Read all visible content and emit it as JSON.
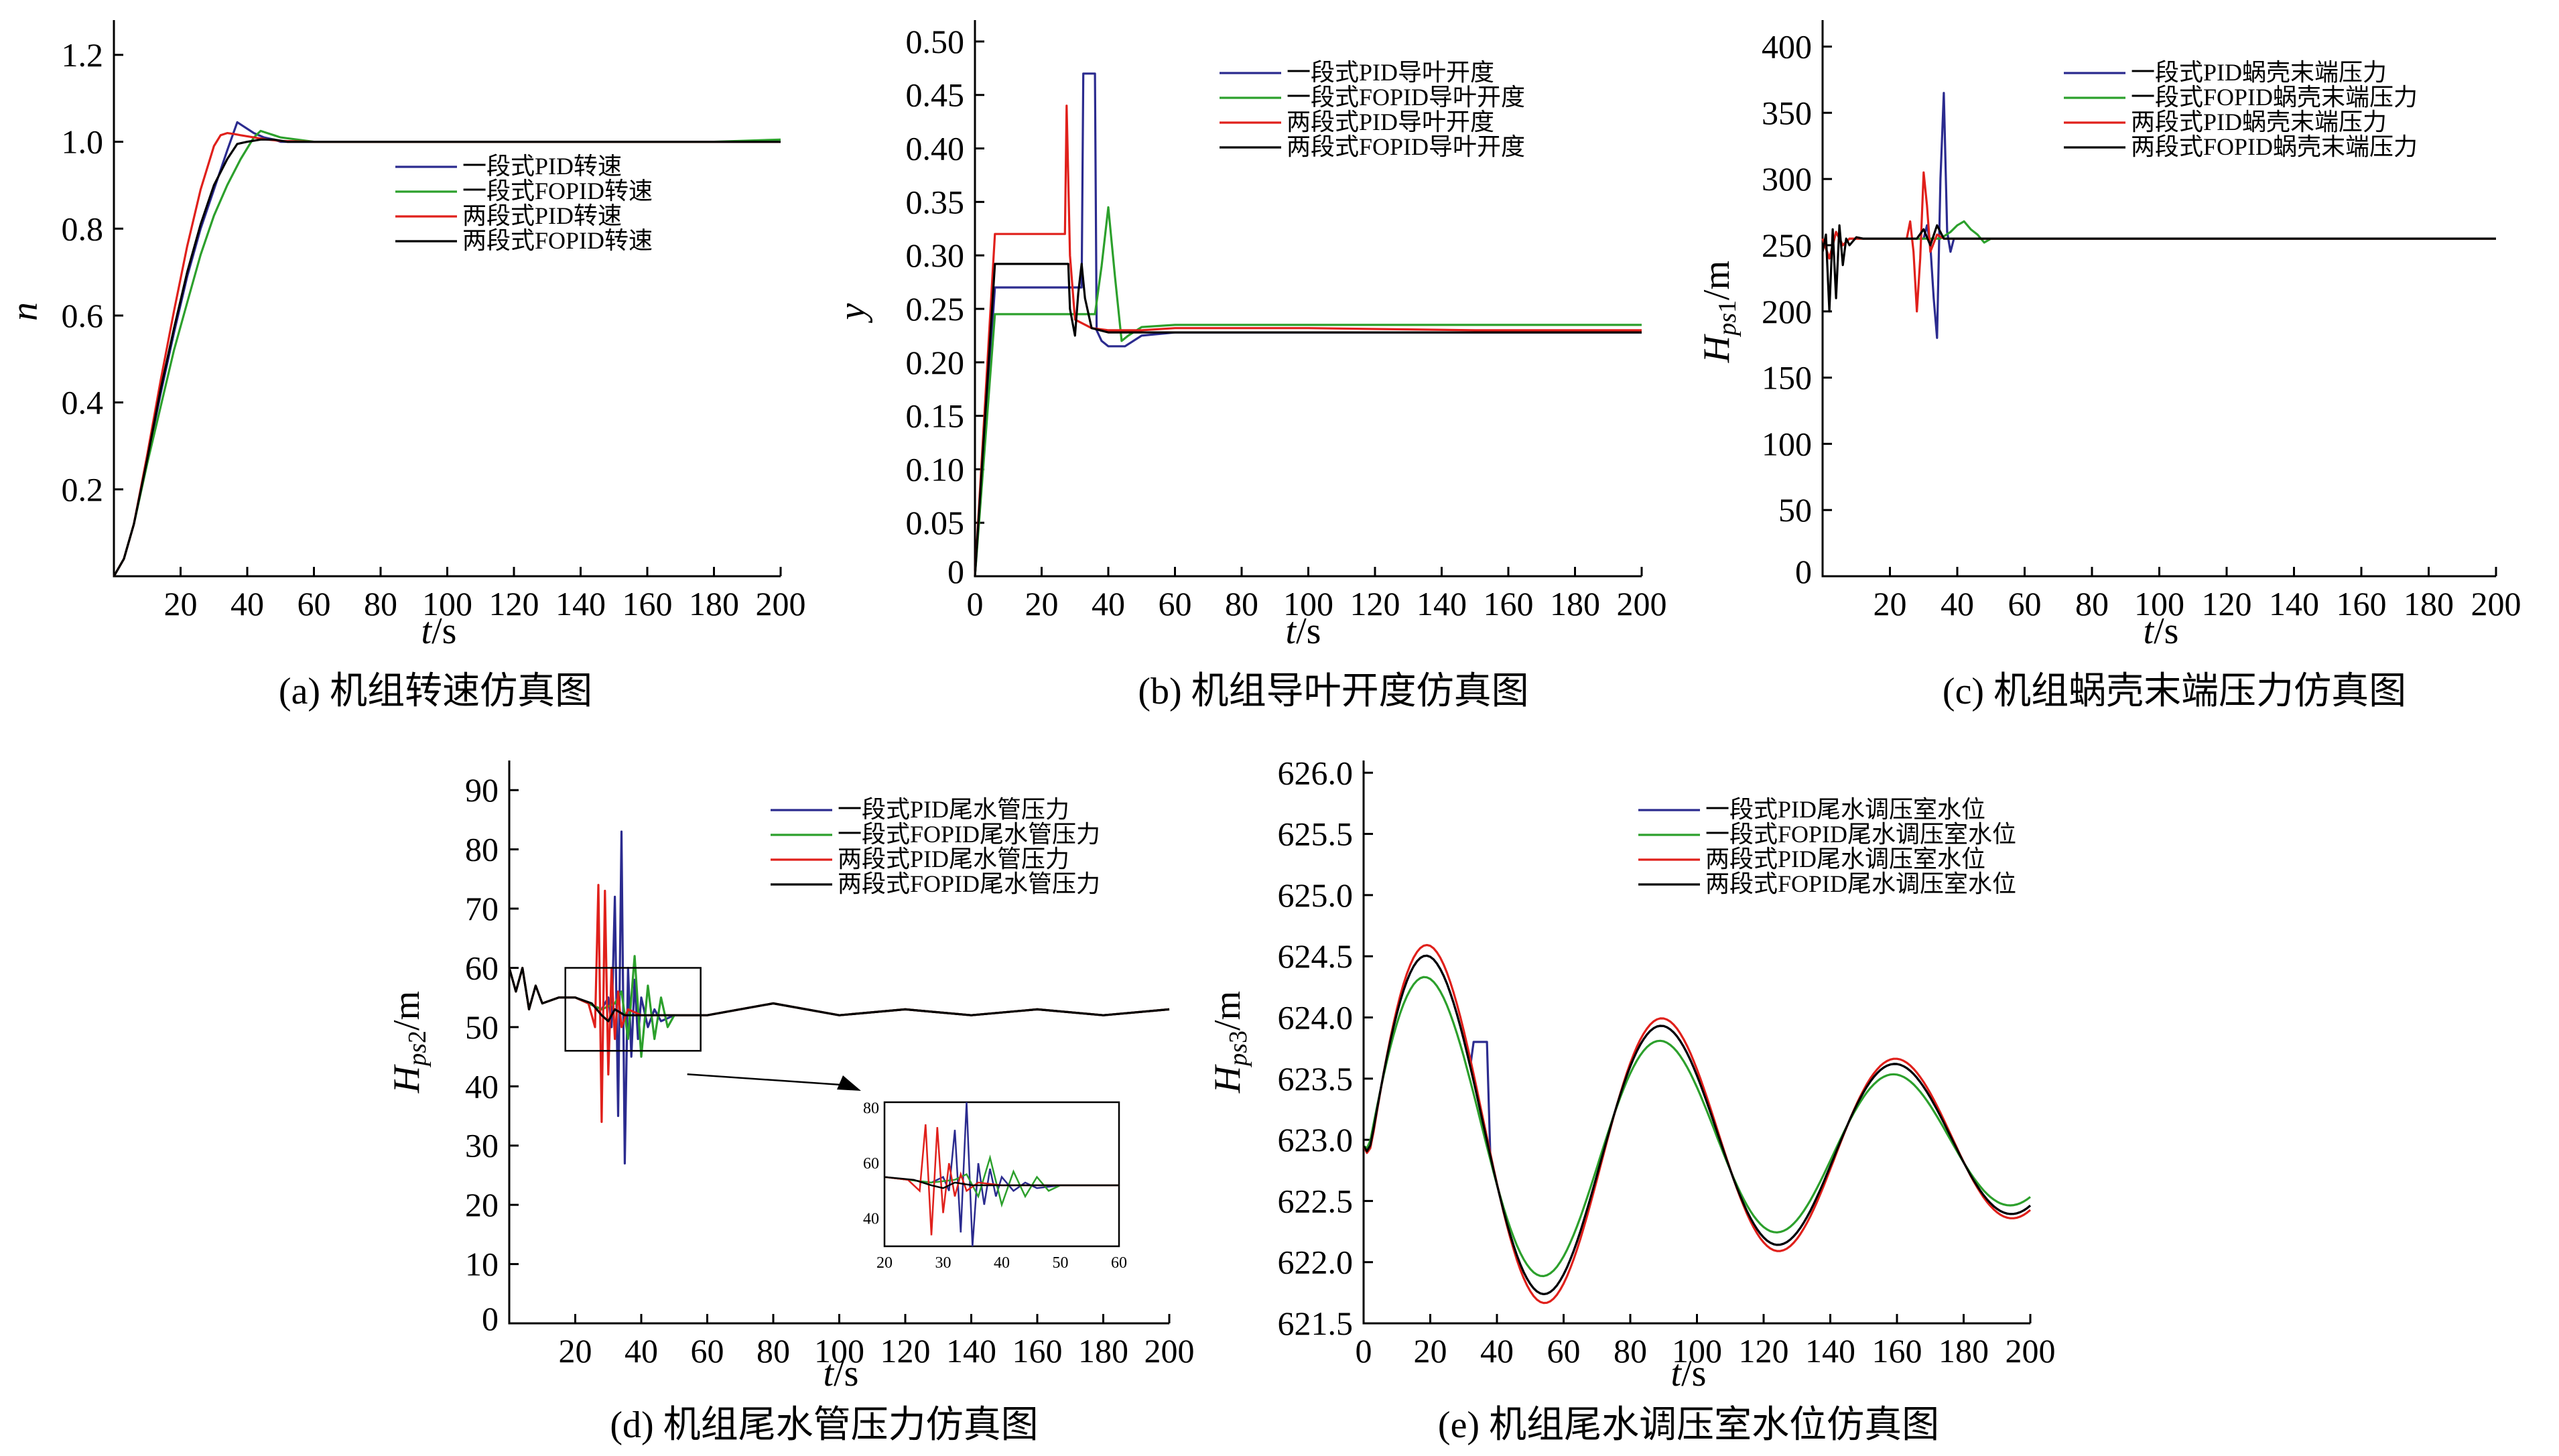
{
  "colors": {
    "pid1": "#2b2b8f",
    "fopid1": "#2ca02c",
    "pid2": "#e0201b",
    "fopid2": "#000000"
  },
  "chart_data": [
    {
      "id": "a",
      "type": "line",
      "caption": "(a) 机组转速仿真图",
      "xlabel": "t/s",
      "ylabel": "n",
      "xlim": [
        0,
        200
      ],
      "ylim": [
        0,
        1.28
      ],
      "xticks": [
        20,
        40,
        60,
        80,
        100,
        120,
        140,
        160,
        180,
        200
      ],
      "yticks": [
        0.2,
        0.4,
        0.6,
        0.8,
        1.0,
        1.2
      ],
      "ytick_labels": [
        "0.2",
        "0.4",
        "0.6",
        "0.8",
        "1.0",
        "1.2"
      ],
      "legend": [
        "一段式PID转速",
        "一段式FOPID转速",
        "两段式PID转速",
        "两段式FOPID转速"
      ],
      "series": [
        {
          "name": "一段式PID转速",
          "color": "pid1",
          "x": [
            0,
            3,
            6,
            10,
            14,
            18,
            22,
            26,
            30,
            34,
            37,
            39,
            42,
            45,
            48,
            50,
            60,
            80,
            100,
            120,
            140,
            160,
            180,
            200
          ],
          "y": [
            0,
            0.04,
            0.12,
            0.27,
            0.42,
            0.56,
            0.69,
            0.8,
            0.89,
            0.98,
            1.045,
            1.035,
            1.02,
            1.01,
            1.005,
            1.0,
            1.0,
            1.0,
            1.0,
            1.0,
            1.0,
            1.0,
            1.0,
            1.0
          ]
        },
        {
          "name": "一段式FOPID转速",
          "color": "fopid1",
          "x": [
            0,
            3,
            6,
            10,
            14,
            18,
            22,
            26,
            30,
            34,
            38,
            42,
            44,
            46,
            48,
            50,
            55,
            60,
            80,
            100,
            120,
            140,
            160,
            180,
            200
          ],
          "y": [
            0,
            0.04,
            0.12,
            0.26,
            0.39,
            0.52,
            0.63,
            0.74,
            0.83,
            0.9,
            0.96,
            1.01,
            1.025,
            1.02,
            1.015,
            1.01,
            1.005,
            1.0,
            1.0,
            1.0,
            1.0,
            1.0,
            1.0,
            1.0,
            1.005
          ]
        },
        {
          "name": "两段式PID转速",
          "color": "pid2",
          "x": [
            0,
            3,
            6,
            10,
            14,
            18,
            22,
            26,
            30,
            32,
            34,
            36,
            38,
            42,
            46,
            50,
            60,
            80,
            100,
            120,
            140,
            160,
            180,
            200
          ],
          "y": [
            0,
            0.04,
            0.12,
            0.28,
            0.45,
            0.61,
            0.76,
            0.89,
            0.99,
            1.015,
            1.02,
            1.018,
            1.015,
            1.01,
            1.005,
            1.002,
            1.0,
            1.0,
            1.0,
            1.0,
            1.0,
            1.0,
            1.0,
            1.0
          ]
        },
        {
          "name": "两段式FOPID转速",
          "color": "fopid2",
          "x": [
            0,
            3,
            6,
            10,
            14,
            18,
            22,
            26,
            30,
            34,
            37,
            40,
            44,
            48,
            52,
            60,
            80,
            100,
            120,
            140,
            160,
            180,
            200
          ],
          "y": [
            0,
            0.04,
            0.12,
            0.27,
            0.43,
            0.57,
            0.7,
            0.81,
            0.9,
            0.96,
            0.995,
            1.0,
            1.005,
            1.005,
            1.0,
            1.0,
            1.0,
            1.0,
            1.0,
            1.0,
            1.0,
            1.0,
            1.0
          ]
        }
      ]
    },
    {
      "id": "b",
      "type": "line",
      "caption": "(b) 机组导叶开度仿真图",
      "xlabel": "t/s",
      "ylabel": "y",
      "xlim": [
        0,
        200
      ],
      "ylim": [
        0,
        0.52
      ],
      "xticks": [
        0,
        20,
        40,
        60,
        80,
        100,
        120,
        140,
        160,
        180,
        200
      ],
      "yticks": [
        0.05,
        0.1,
        0.15,
        0.2,
        0.25,
        0.3,
        0.35,
        0.4,
        0.45,
        0.5
      ],
      "ytick_labels": [
        "0.05",
        "0.10",
        "0.15",
        "0.20",
        "0.25",
        "0.30",
        "0.35",
        "0.40",
        "0.45",
        "0.50"
      ],
      "legend": [
        "一段式PID导叶开度",
        "一段式FOPID导叶开度",
        "两段式PID导叶开度",
        "两段式FOPID导叶开度"
      ],
      "series": [
        {
          "name": "一段式PID导叶开度",
          "color": "pid1",
          "x": [
            0,
            6,
            32,
            32.5,
            36,
            36.5,
            38,
            40,
            45,
            50,
            60,
            100,
            150,
            200
          ],
          "y": [
            0.0,
            0.27,
            0.27,
            0.47,
            0.47,
            0.23,
            0.22,
            0.215,
            0.215,
            0.225,
            0.228,
            0.228,
            0.228,
            0.228
          ]
        },
        {
          "name": "一段式FOPID导叶开度",
          "color": "fopid1",
          "x": [
            0,
            6,
            36,
            38,
            40,
            42,
            44,
            46,
            50,
            60,
            100,
            150,
            200
          ],
          "y": [
            0.0,
            0.245,
            0.245,
            0.29,
            0.345,
            0.28,
            0.22,
            0.225,
            0.233,
            0.235,
            0.235,
            0.235,
            0.235
          ]
        },
        {
          "name": "两段式PID导叶开度",
          "color": "pid2",
          "x": [
            0,
            6,
            26,
            27,
            27.5,
            28.5,
            30,
            35,
            40,
            50,
            60,
            100,
            150,
            200
          ],
          "y": [
            0.0,
            0.32,
            0.32,
            0.32,
            0.44,
            0.3,
            0.24,
            0.232,
            0.23,
            0.23,
            0.232,
            0.232,
            0.23,
            0.23
          ]
        },
        {
          "name": "两段式FOPID导叶开度",
          "color": "fopid2",
          "x": [
            0,
            6,
            28,
            28.5,
            30,
            31,
            32,
            33,
            35,
            40,
            50,
            100,
            150,
            200
          ],
          "y": [
            0.0,
            0.292,
            0.292,
            0.25,
            0.225,
            0.265,
            0.292,
            0.26,
            0.232,
            0.228,
            0.228,
            0.228,
            0.228,
            0.228
          ]
        }
      ]
    },
    {
      "id": "c",
      "type": "line",
      "caption": "(c) 机组蜗壳末端压力仿真图",
      "xlabel": "t/s",
      "ylabel": "Hps1/m",
      "xlim": [
        0,
        200
      ],
      "ylim": [
        0,
        420
      ],
      "xticks": [
        20,
        40,
        60,
        80,
        100,
        120,
        140,
        160,
        180,
        200
      ],
      "yticks": [
        50,
        100,
        150,
        200,
        250,
        300,
        350,
        400
      ],
      "ytick_labels": [
        "50",
        "100",
        "150",
        "200",
        "250",
        "300",
        "350",
        "400"
      ],
      "legend": [
        "一段式PID蜗壳末端压力",
        "一段式FOPID蜗壳末端压力",
        "两段式PID蜗壳末端压力",
        "两段式FOPID蜗壳末端压力"
      ],
      "series": [
        {
          "name": "一段式PID蜗壳末端压力",
          "color": "pid1",
          "x": [
            0,
            2,
            4,
            6,
            8,
            10,
            20,
            30,
            31,
            32,
            33,
            34,
            35,
            36,
            37,
            38,
            39,
            40,
            45,
            50,
            100,
            150,
            200
          ],
          "y": [
            255,
            240,
            260,
            250,
            255,
            255,
            255,
            255,
            265,
            250,
            210,
            180,
            300,
            365,
            260,
            245,
            255,
            255,
            255,
            255,
            255,
            255,
            255
          ]
        },
        {
          "name": "一段式FOPID蜗壳末端压力",
          "color": "fopid1",
          "x": [
            0,
            2,
            4,
            6,
            8,
            10,
            20,
            30,
            35,
            38,
            40,
            42,
            44,
            46,
            48,
            50,
            100,
            150,
            200
          ],
          "y": [
            255,
            240,
            260,
            250,
            255,
            255,
            255,
            255,
            255,
            260,
            265,
            268,
            262,
            258,
            252,
            255,
            255,
            255,
            255
          ]
        },
        {
          "name": "两段式PID蜗壳末端压力",
          "color": "pid2",
          "x": [
            0,
            2,
            4,
            6,
            8,
            10,
            20,
            25,
            26,
            27,
            28,
            29,
            30,
            31,
            32,
            34,
            36,
            40,
            50,
            100,
            150,
            200
          ],
          "y": [
            255,
            240,
            260,
            250,
            255,
            255,
            255,
            255,
            268,
            245,
            200,
            240,
            305,
            280,
            245,
            258,
            255,
            255,
            255,
            255,
            255,
            255
          ]
        },
        {
          "name": "两段式FOPID蜗壳末端压力",
          "color": "fopid2",
          "x": [
            0,
            1,
            2,
            3,
            4,
            5,
            6,
            7,
            8,
            10,
            12,
            20,
            28,
            30,
            32,
            34,
            36,
            40,
            50,
            100,
            150,
            200
          ],
          "y": [
            245,
            258,
            200,
            262,
            210,
            265,
            235,
            255,
            250,
            256,
            255,
            255,
            255,
            262,
            250,
            265,
            255,
            255,
            255,
            255,
            255,
            255
          ]
        }
      ]
    },
    {
      "id": "d",
      "type": "line",
      "caption": "(d) 机组尾水管压力仿真图",
      "xlabel": "t/s",
      "ylabel": "Hps2/m",
      "xlim": [
        0,
        200
      ],
      "ylim": [
        0,
        95
      ],
      "xticks": [
        20,
        40,
        60,
        80,
        100,
        120,
        140,
        160,
        180,
        200
      ],
      "yticks": [
        10,
        20,
        30,
        40,
        50,
        60,
        70,
        80,
        90
      ],
      "ytick_labels": [
        "10",
        "20",
        "30",
        "40",
        "50",
        "60",
        "70",
        "80",
        "90"
      ],
      "legend": [
        "一段式PID尾水管压力",
        "一段式FOPID尾水管压力",
        "两段式PID尾水管压力",
        "两段式FOPID尾水管压力"
      ],
      "inset": {
        "xlim": [
          20,
          60
        ],
        "ylim": [
          30,
          82
        ],
        "xticks": [
          20,
          30,
          40,
          50,
          60
        ],
        "yticks": [
          40,
          60,
          80
        ]
      },
      "series": [
        {
          "name": "一段式PID尾水管压力",
          "color": "pid1",
          "x": [
            0,
            2,
            4,
            6,
            8,
            10,
            15,
            20,
            28,
            30,
            31,
            32,
            33,
            34,
            35,
            36,
            37,
            38,
            39,
            40,
            42,
            44,
            46,
            50,
            60,
            80,
            100,
            120,
            140,
            160,
            180,
            200
          ],
          "y": [
            60,
            56,
            60,
            53,
            57,
            54,
            55,
            55,
            53,
            55,
            50,
            72,
            35,
            83,
            27,
            60,
            45,
            58,
            48,
            55,
            50,
            53,
            51,
            52,
            52,
            54,
            52,
            53,
            52,
            53,
            52,
            53
          ]
        },
        {
          "name": "一段式FOPID尾水管压力",
          "color": "fopid1",
          "x": [
            0,
            2,
            4,
            6,
            8,
            10,
            15,
            20,
            28,
            32,
            34,
            36,
            38,
            40,
            42,
            44,
            46,
            48,
            50,
            60,
            80,
            100,
            120,
            140,
            160,
            180,
            200
          ],
          "y": [
            60,
            56,
            60,
            53,
            57,
            54,
            55,
            55,
            53,
            54,
            56,
            48,
            62,
            45,
            57,
            48,
            55,
            50,
            52,
            52,
            54,
            52,
            53,
            52,
            53,
            52,
            53
          ]
        },
        {
          "name": "两段式PID尾水管压力",
          "color": "pid2",
          "x": [
            0,
            2,
            4,
            6,
            8,
            10,
            15,
            20,
            24,
            26,
            27,
            28,
            29,
            30,
            31,
            32,
            33,
            34,
            36,
            40,
            45,
            50,
            60,
            80,
            100,
            120,
            140,
            160,
            180,
            200
          ],
          "y": [
            60,
            56,
            60,
            53,
            57,
            54,
            55,
            55,
            54,
            50,
            74,
            34,
            73,
            42,
            60,
            48,
            56,
            50,
            53,
            52,
            52,
            52,
            52,
            54,
            52,
            53,
            52,
            53,
            52,
            53
          ]
        },
        {
          "name": "两段式FOPID尾水管压力",
          "color": "fopid2",
          "x": [
            0,
            2,
            4,
            6,
            8,
            10,
            15,
            20,
            25,
            28,
            30,
            32,
            35,
            40,
            50,
            60,
            80,
            100,
            120,
            140,
            160,
            180,
            200
          ],
          "y": [
            60,
            56,
            60,
            53,
            57,
            54,
            55,
            55,
            54,
            52,
            51,
            53,
            52,
            52,
            52,
            52,
            54,
            52,
            53,
            52,
            53,
            52,
            53
          ]
        }
      ]
    },
    {
      "id": "e",
      "type": "line",
      "caption": "(e) 机组尾水调压室水位仿真图",
      "xlabel": "t/s",
      "ylabel": "Hps3/m",
      "xlim": [
        0,
        200
      ],
      "ylim": [
        621.5,
        626.1
      ],
      "xticks": [
        0,
        20,
        40,
        60,
        80,
        100,
        120,
        140,
        160,
        180,
        200
      ],
      "yticks": [
        621.5,
        622.0,
        622.5,
        623.0,
        623.5,
        624.0,
        624.5,
        625.0,
        625.5,
        626.0
      ],
      "ytick_labels": [
        "621.5",
        "622.0",
        "622.5",
        "623.0",
        "623.5",
        "624.0",
        "624.5",
        "625.0",
        "625.5",
        "626.0"
      ],
      "legend": [
        "一段式PID尾水调压室水位",
        "一段式FOPID尾水调压室水位",
        "两段式PID尾水调压室水位",
        "两段式FOPID尾水调压室水位"
      ],
      "series": [
        {
          "name": "一段式PID尾水调压室水位",
          "color": "pid1",
          "amp": 1.55,
          "ph": 0,
          "kink": true
        },
        {
          "name": "一段式FOPID尾水调压室水位",
          "color": "fopid1",
          "amp": 1.35,
          "ph": 1.2
        },
        {
          "name": "两段式PID尾水调压室水位",
          "color": "pid2",
          "amp": 1.65,
          "ph": -0.6
        },
        {
          "name": "两段式FOPID尾水调压室水位",
          "color": "fopid2",
          "amp": 1.55,
          "ph": 0
        }
      ]
    }
  ]
}
